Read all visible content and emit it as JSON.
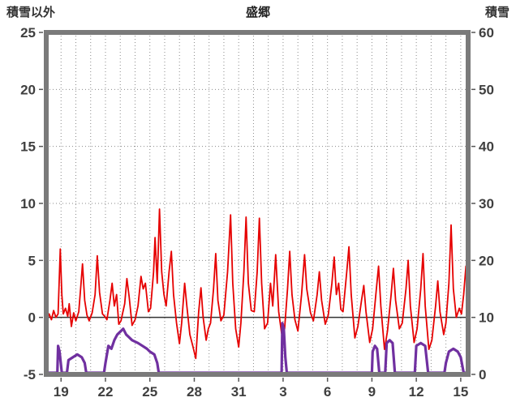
{
  "header": {
    "left_axis_title": "積雪以外",
    "title": "盛郷",
    "right_axis_title": "積雪"
  },
  "chart_data": {
    "type": "line",
    "title": "盛郷",
    "left_axis": {
      "label": "積雪以外",
      "min": -5,
      "max": 25,
      "ticks": [
        25,
        20,
        15,
        10,
        5,
        0,
        -5
      ]
    },
    "right_axis": {
      "label": "積雪",
      "min": 0,
      "max": 60,
      "ticks": [
        60,
        50,
        40,
        30,
        20,
        10,
        0
      ]
    },
    "x_axis": {
      "min": 18,
      "max": 46.5,
      "minor_step": 1,
      "tick_values": [
        19,
        22,
        25,
        28,
        31,
        34,
        37,
        40,
        43,
        46
      ],
      "tick_labels": [
        "19",
        "22",
        "25",
        "28",
        "31",
        "3",
        "6",
        "9",
        "12",
        "15"
      ]
    },
    "grid": {
      "on": true,
      "style": "dotted",
      "color": "#8a8a8a",
      "zero_line_color": "#333333",
      "frame_color": "#7a7a7a"
    },
    "legend": {
      "visible": false
    },
    "series": [
      {
        "name": "積雪以外",
        "axis": "left",
        "color": "#e60000",
        "width": 1.8,
        "points": [
          [
            18.0,
            -0.4
          ],
          [
            18.2,
            0.3
          ],
          [
            18.35,
            -0.2
          ],
          [
            18.5,
            0.6
          ],
          [
            18.65,
            0.0
          ],
          [
            18.8,
            0.3
          ],
          [
            18.95,
            6.0
          ],
          [
            19.05,
            2.0
          ],
          [
            19.15,
            0.3
          ],
          [
            19.3,
            0.8
          ],
          [
            19.45,
            0.1
          ],
          [
            19.55,
            1.2
          ],
          [
            19.7,
            -0.8
          ],
          [
            19.85,
            0.4
          ],
          [
            20.0,
            -0.3
          ],
          [
            20.2,
            0.5
          ],
          [
            20.35,
            3.0
          ],
          [
            20.45,
            4.7
          ],
          [
            20.6,
            1.5
          ],
          [
            20.75,
            0.2
          ],
          [
            20.9,
            -0.3
          ],
          [
            21.1,
            0.4
          ],
          [
            21.3,
            2.0
          ],
          [
            21.45,
            5.4
          ],
          [
            21.6,
            2.2
          ],
          [
            21.8,
            0.3
          ],
          [
            21.95,
            0.1
          ],
          [
            22.1,
            -0.2
          ],
          [
            22.3,
            1.5
          ],
          [
            22.45,
            3.0
          ],
          [
            22.6,
            1.0
          ],
          [
            22.75,
            2.0
          ],
          [
            22.9,
            -0.6
          ],
          [
            23.05,
            -0.3
          ],
          [
            23.3,
            1.2
          ],
          [
            23.45,
            3.4
          ],
          [
            23.6,
            1.8
          ],
          [
            23.8,
            -0.7
          ],
          [
            24.0,
            -0.2
          ],
          [
            24.2,
            1.0
          ],
          [
            24.4,
            3.6
          ],
          [
            24.55,
            2.5
          ],
          [
            24.7,
            3.0
          ],
          [
            24.9,
            0.5
          ],
          [
            25.05,
            0.8
          ],
          [
            25.25,
            4.0
          ],
          [
            25.35,
            7.0
          ],
          [
            25.5,
            3.0
          ],
          [
            25.65,
            9.5
          ],
          [
            25.8,
            4.0
          ],
          [
            25.95,
            2.0
          ],
          [
            26.1,
            1.0
          ],
          [
            26.3,
            4.0
          ],
          [
            26.45,
            5.8
          ],
          [
            26.6,
            2.0
          ],
          [
            26.8,
            -0.5
          ],
          [
            27.0,
            -2.3
          ],
          [
            27.15,
            -0.5
          ],
          [
            27.35,
            3.0
          ],
          [
            27.5,
            1.0
          ],
          [
            27.7,
            -1.5
          ],
          [
            27.9,
            -2.5
          ],
          [
            28.1,
            -3.6
          ],
          [
            28.3,
            0.5
          ],
          [
            28.45,
            2.6
          ],
          [
            28.6,
            0.0
          ],
          [
            28.8,
            -2.0
          ],
          [
            28.95,
            -1.0
          ],
          [
            29.1,
            -0.5
          ],
          [
            29.3,
            2.5
          ],
          [
            29.45,
            5.6
          ],
          [
            29.6,
            1.5
          ],
          [
            29.8,
            -0.3
          ],
          [
            30.0,
            0.2
          ],
          [
            30.25,
            4.0
          ],
          [
            30.45,
            9.0
          ],
          [
            30.6,
            3.0
          ],
          [
            30.8,
            -1.0
          ],
          [
            31.0,
            -2.6
          ],
          [
            31.15,
            -0.5
          ],
          [
            31.35,
            4.0
          ],
          [
            31.5,
            8.8
          ],
          [
            31.65,
            3.0
          ],
          [
            31.85,
            0.6
          ],
          [
            32.05,
            0.5
          ],
          [
            32.25,
            4.0
          ],
          [
            32.4,
            8.7
          ],
          [
            32.55,
            3.0
          ],
          [
            32.75,
            -1.0
          ],
          [
            32.95,
            -0.5
          ],
          [
            33.15,
            3.0
          ],
          [
            33.3,
            1.0
          ],
          [
            33.5,
            5.5
          ],
          [
            33.7,
            0.5
          ],
          [
            33.9,
            -1.4
          ],
          [
            34.1,
            -1.0
          ],
          [
            34.3,
            2.5
          ],
          [
            34.45,
            5.8
          ],
          [
            34.6,
            2.0
          ],
          [
            34.8,
            -0.2
          ],
          [
            35.0,
            -1.2
          ],
          [
            35.25,
            2.0
          ],
          [
            35.45,
            5.5
          ],
          [
            35.6,
            2.5
          ],
          [
            35.85,
            0.4
          ],
          [
            36.05,
            -0.3
          ],
          [
            36.3,
            2.0
          ],
          [
            36.45,
            4.0
          ],
          [
            36.6,
            1.5
          ],
          [
            36.85,
            -0.6
          ],
          [
            37.05,
            0.2
          ],
          [
            37.3,
            3.0
          ],
          [
            37.45,
            5.3
          ],
          [
            37.6,
            2.0
          ],
          [
            37.75,
            3.0
          ],
          [
            37.9,
            0.7
          ],
          [
            38.05,
            0.5
          ],
          [
            38.3,
            4.0
          ],
          [
            38.45,
            6.2
          ],
          [
            38.6,
            2.0
          ],
          [
            38.85,
            -1.8
          ],
          [
            39.05,
            -0.8
          ],
          [
            39.3,
            1.5
          ],
          [
            39.45,
            2.8
          ],
          [
            39.6,
            0.5
          ],
          [
            39.85,
            -2.2
          ],
          [
            40.05,
            -1.0
          ],
          [
            40.3,
            2.5
          ],
          [
            40.45,
            4.5
          ],
          [
            40.6,
            1.0
          ],
          [
            40.85,
            -2.8
          ],
          [
            41.05,
            -1.2
          ],
          [
            41.3,
            2.0
          ],
          [
            41.45,
            4.3
          ],
          [
            41.6,
            1.5
          ],
          [
            41.85,
            -1.0
          ],
          [
            42.05,
            -0.5
          ],
          [
            42.3,
            2.5
          ],
          [
            42.45,
            5.0
          ],
          [
            42.6,
            1.0
          ],
          [
            42.85,
            -2.2
          ],
          [
            43.05,
            -1.0
          ],
          [
            43.3,
            2.5
          ],
          [
            43.45,
            5.6
          ],
          [
            43.6,
            1.0
          ],
          [
            43.85,
            -2.8
          ],
          [
            44.05,
            -2.0
          ],
          [
            44.3,
            1.0
          ],
          [
            44.45,
            3.2
          ],
          [
            44.6,
            0.5
          ],
          [
            44.85,
            -1.5
          ],
          [
            45.0,
            -0.5
          ],
          [
            45.2,
            3.0
          ],
          [
            45.35,
            8.1
          ],
          [
            45.5,
            2.5
          ],
          [
            45.7,
            0.0
          ],
          [
            45.9,
            0.8
          ],
          [
            46.05,
            0.3
          ],
          [
            46.2,
            2.0
          ],
          [
            46.35,
            4.5
          ],
          [
            46.45,
            2.0
          ],
          [
            46.5,
            1.0
          ]
        ]
      },
      {
        "name": "積雪",
        "axis": "right",
        "color": "#7030a0",
        "width": 3.2,
        "points": [
          [
            18.0,
            0
          ],
          [
            18.75,
            0
          ],
          [
            18.8,
            5
          ],
          [
            18.9,
            4
          ],
          [
            19.05,
            0
          ],
          [
            19.4,
            0
          ],
          [
            19.5,
            2.5
          ],
          [
            19.8,
            3
          ],
          [
            20.1,
            3.5
          ],
          [
            20.4,
            3
          ],
          [
            20.6,
            2
          ],
          [
            20.7,
            0
          ],
          [
            21.9,
            0
          ],
          [
            22.0,
            2
          ],
          [
            22.2,
            5
          ],
          [
            22.4,
            4.5
          ],
          [
            22.6,
            6
          ],
          [
            22.8,
            7
          ],
          [
            23.0,
            7.5
          ],
          [
            23.2,
            8
          ],
          [
            23.4,
            7
          ],
          [
            23.6,
            6.5
          ],
          [
            23.8,
            6
          ],
          [
            24.2,
            5.5
          ],
          [
            24.5,
            5
          ],
          [
            24.8,
            4.5
          ],
          [
            25.0,
            4
          ],
          [
            25.3,
            3.5
          ],
          [
            25.5,
            2
          ],
          [
            25.6,
            0
          ],
          [
            33.9,
            0
          ],
          [
            33.95,
            9
          ],
          [
            34.05,
            8
          ],
          [
            34.15,
            3
          ],
          [
            34.25,
            0
          ],
          [
            40.0,
            0
          ],
          [
            40.05,
            4
          ],
          [
            40.2,
            5
          ],
          [
            40.35,
            4.5
          ],
          [
            40.5,
            0
          ],
          [
            40.9,
            0
          ],
          [
            41.0,
            5.5
          ],
          [
            41.2,
            6
          ],
          [
            41.4,
            5.5
          ],
          [
            41.55,
            0
          ],
          [
            42.9,
            0
          ],
          [
            43.0,
            5
          ],
          [
            43.3,
            5.5
          ],
          [
            43.6,
            5
          ],
          [
            43.8,
            0
          ],
          [
            44.9,
            0
          ],
          [
            45.0,
            2
          ],
          [
            45.2,
            4
          ],
          [
            45.5,
            4.5
          ],
          [
            45.8,
            4
          ],
          [
            46.0,
            3
          ],
          [
            46.2,
            0
          ],
          [
            46.5,
            0
          ]
        ]
      }
    ]
  }
}
